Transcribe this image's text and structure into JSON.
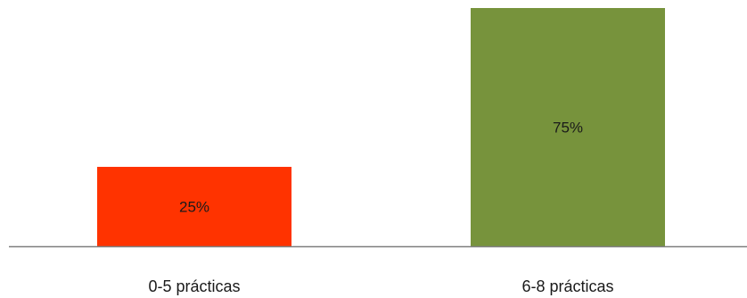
{
  "chart_data": {
    "type": "bar",
    "categories": [
      "0-5 prácticas",
      "6-8 prácticas"
    ],
    "values": [
      25,
      75
    ],
    "value_labels": [
      "25%",
      "75%"
    ],
    "colors": [
      "#ff3300",
      "#77933c"
    ],
    "axis_color": "#7f7f7f",
    "ylim": [
      0,
      75
    ],
    "grid": false,
    "legend": "none"
  }
}
